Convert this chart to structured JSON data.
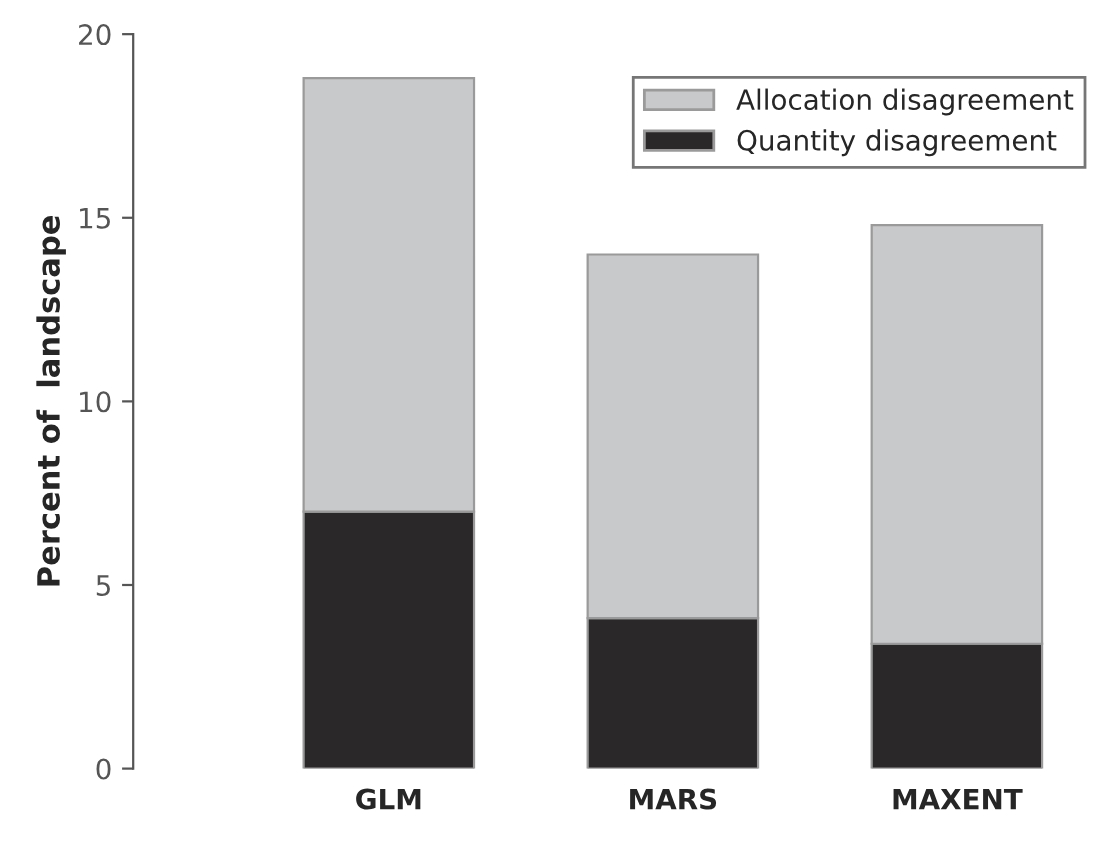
{
  "chart_data": {
    "type": "bar",
    "stacked": true,
    "ylabel": "Percent of  landscape",
    "categories": [
      "GLM",
      "MARS",
      "MAXENT"
    ],
    "series": [
      {
        "name": "Quantity disagreement",
        "color": "#2b2829",
        "values": [
          7.0,
          4.1,
          3.4
        ]
      },
      {
        "name": "Allocation disagreement",
        "color": "#c8c9cb",
        "values": [
          11.8,
          9.9,
          11.4
        ]
      }
    ],
    "ylim": [
      0,
      20
    ],
    "yticks": [
      0,
      5,
      10,
      15,
      20
    ],
    "grid": false,
    "legend": "top right"
  }
}
